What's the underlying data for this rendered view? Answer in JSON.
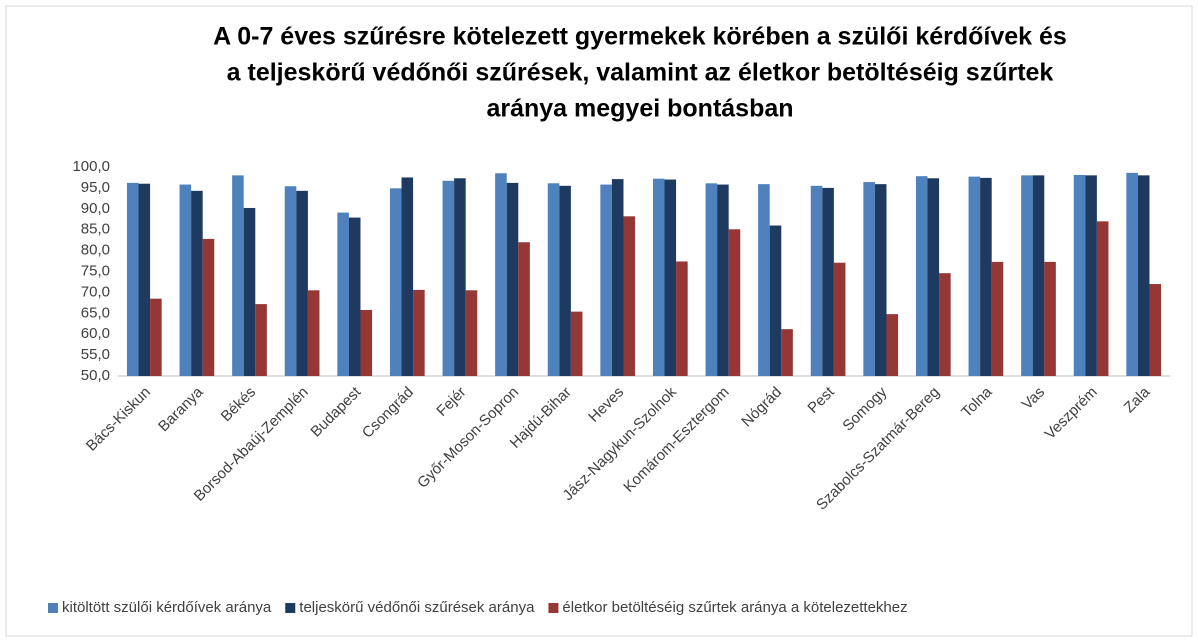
{
  "chart_data": {
    "type": "bar",
    "title": [
      "A 0-7 éves szűrésre kötelezett gyermekek körében a szülői kérdőívek és",
      "a teljeskörű védőnői szűrések, valamint az életkor betöltéséig szűrtek",
      "aránya megyei bontásban"
    ],
    "categories": [
      "Bács-Kiskun",
      "Baranya",
      "Békés",
      "Borsod-Abaúj-Zemplén",
      "Budapest",
      "Csongrád",
      "Fejér",
      "Győr-Moson-Sopron",
      "Hajdú-Bihar",
      "Heves",
      "Jász-Nagykun-Szolnok",
      "Komárom-Esztergom",
      "Nógrád",
      "Pest",
      "Somogy",
      "Szabolcs-Szatmár-Bereg",
      "Tolna",
      "Vas",
      "Veszprém",
      "Zala"
    ],
    "series": [
      {
        "name": "kitöltött szülői kérdőívek aránya",
        "color": "#4f81bd",
        "values": [
          96.2,
          95.8,
          98.0,
          95.4,
          89.1,
          94.9,
          96.7,
          98.5,
          96.1,
          95.8,
          97.2,
          96.1,
          95.9,
          95.5,
          96.4,
          97.8,
          97.7,
          98.0,
          98.1,
          98.6
        ]
      },
      {
        "name": "teljeskörű védőnői szűrések aránya",
        "color": "#1f3a60",
        "values": [
          96.0,
          94.3,
          90.2,
          94.3,
          87.9,
          97.5,
          97.3,
          96.2,
          95.5,
          97.1,
          97.0,
          95.8,
          86.0,
          95.0,
          95.9,
          97.3,
          97.4,
          98.0,
          98.0,
          98.0
        ]
      },
      {
        "name": "életkor betöltéséig szűrtek aránya a kötelezettekhez",
        "color": "#953735",
        "values": [
          68.5,
          82.8,
          67.2,
          70.5,
          65.8,
          70.6,
          70.5,
          82.0,
          65.4,
          88.2,
          77.4,
          85.1,
          61.2,
          77.1,
          64.8,
          74.6,
          77.3,
          77.3,
          87.0,
          72.0
        ]
      }
    ],
    "ylim": [
      50,
      100
    ],
    "yticks": [
      {
        "value": 50,
        "label": "50,0"
      },
      {
        "value": 55,
        "label": "55,0"
      },
      {
        "value": 60,
        "label": "60,0"
      },
      {
        "value": 65,
        "label": "65,0"
      },
      {
        "value": 70,
        "label": "70,0"
      },
      {
        "value": 75,
        "label": "75,0"
      },
      {
        "value": 80,
        "label": "80,0"
      },
      {
        "value": 85,
        "label": "85,0"
      },
      {
        "value": 90,
        "label": "90,0"
      },
      {
        "value": 95,
        "label": "95,0"
      },
      {
        "value": {
          "value": 100,
          "label": "100,0"
        },
        "label": "100,0"
      }
    ]
  }
}
